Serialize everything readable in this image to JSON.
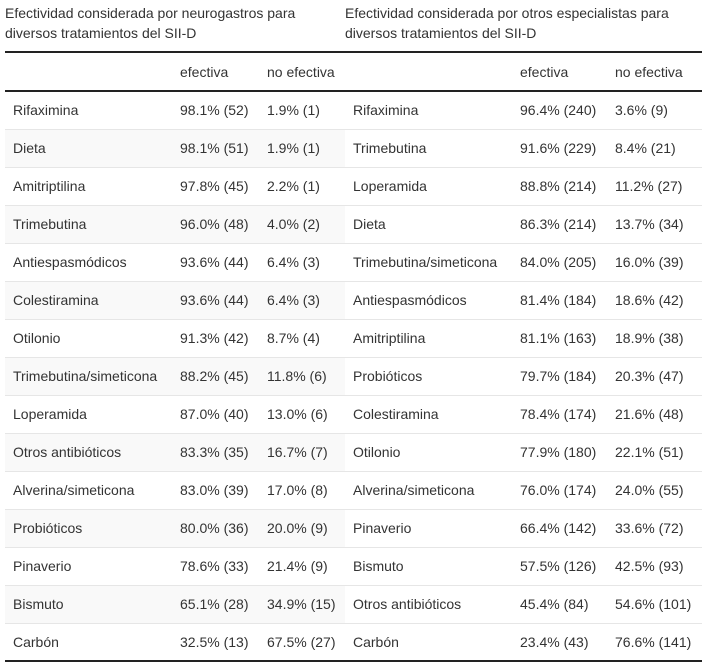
{
  "titles": {
    "left": [
      "Efectividad considerada por neurogastros para",
      "diversos tratamientos del SII-D"
    ],
    "right": [
      "Efectividad considerada por otros especialistas para",
      "diversos tratamientos del SII-D"
    ]
  },
  "header": {
    "left": [
      "",
      "efectiva",
      "no efectiva"
    ],
    "right": [
      "",
      "efectiva",
      "no efectiva"
    ]
  },
  "rows": [
    {
      "left": [
        "Rifaximina",
        "98.1% (52)",
        "1.9% (1)"
      ],
      "right": [
        "Rifaximina",
        "96.4% (240)",
        "3.6% (9)"
      ]
    },
    {
      "left": [
        "Dieta",
        "98.1% (51)",
        "1.9% (1)"
      ],
      "right": [
        "Trimebutina",
        "91.6% (229)",
        "8.4% (21)"
      ]
    },
    {
      "left": [
        "Amitriptilina",
        "97.8% (45)",
        "2.2% (1)"
      ],
      "right": [
        "Loperamida",
        "88.8% (214)",
        "11.2% (27)"
      ]
    },
    {
      "left": [
        "Trimebutina",
        "96.0% (48)",
        "4.0% (2)"
      ],
      "right": [
        "Dieta",
        "86.3% (214)",
        "13.7% (34)"
      ]
    },
    {
      "left": [
        "Antiespasmódicos",
        "93.6% (44)",
        "6.4% (3)"
      ],
      "right": [
        "Trimebutina/simeticona",
        "84.0% (205)",
        "16.0% (39)"
      ]
    },
    {
      "left": [
        "Colestiramina",
        "93.6% (44)",
        "6.4% (3)"
      ],
      "right": [
        "Antiespasmódicos",
        "81.4% (184)",
        "18.6% (42)"
      ]
    },
    {
      "left": [
        "Otilonio",
        "91.3% (42)",
        "8.7% (4)"
      ],
      "right": [
        "Amitriptilina",
        "81.1% (163)",
        "18.9% (38)"
      ]
    },
    {
      "left": [
        "Trimebutina/simeticona",
        "88.2% (45)",
        "11.8% (6)"
      ],
      "right": [
        "Probióticos",
        "79.7% (184)",
        "20.3% (47)"
      ]
    },
    {
      "left": [
        "Loperamida",
        "87.0% (40)",
        "13.0% (6)"
      ],
      "right": [
        "Colestiramina",
        "78.4% (174)",
        "21.6% (48)"
      ]
    },
    {
      "left": [
        "Otros antibióticos",
        "83.3% (35)",
        "16.7% (7)"
      ],
      "right": [
        "Otilonio",
        "77.9% (180)",
        "22.1% (51)"
      ]
    },
    {
      "left": [
        "Alverina/simeticona",
        "83.0% (39)",
        "17.0% (8)"
      ],
      "right": [
        "Alverina/simeticona",
        "76.0% (174)",
        "24.0% (55)"
      ]
    },
    {
      "left": [
        "Probióticos",
        "80.0% (36)",
        "20.0% (9)"
      ],
      "right": [
        "Pinaverio",
        "66.4% (142)",
        "33.6% (72)"
      ]
    },
    {
      "left": [
        "Pinaverio",
        "78.6% (33)",
        "21.4% (9)"
      ],
      "right": [
        "Bismuto",
        "57.5% (126)",
        "42.5% (93)"
      ]
    },
    {
      "left": [
        "Bismuto",
        "65.1% (28)",
        "34.9% (15)"
      ],
      "right": [
        "Otros antibióticos",
        "45.4% (84)",
        "54.6% (101)"
      ]
    },
    {
      "left": [
        "Carbón",
        "32.5% (13)",
        "67.5% (27)"
      ],
      "right": [
        "Carbón",
        "23.4% (43)",
        "76.6% (141)"
      ]
    }
  ]
}
